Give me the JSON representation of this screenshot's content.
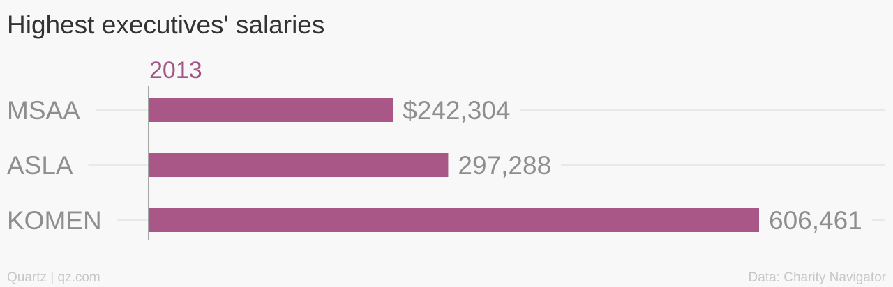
{
  "chart_data": {
    "type": "bar",
    "orientation": "horizontal",
    "title": "Highest executives' salaries",
    "series": [
      {
        "name": "2013",
        "color": "#a85786",
        "values": [
          242304,
          297288,
          606461
        ],
        "value_labels": [
          "$242,304",
          "297,288",
          "606,461"
        ]
      }
    ],
    "categories": [
      "MSAA",
      "ASLA",
      "KOMEN"
    ],
    "xlim": [
      0,
      606461
    ],
    "grid": true
  },
  "footer": {
    "credit": "Quartz | qz.com",
    "source": "Data: Charity Navigator"
  },
  "colors": {
    "bar": "#a85786",
    "series_label": "#a05785",
    "title": "#333333",
    "category_text": "#8e8e8e",
    "value_text": "#8e8e8e",
    "footer_text": "#c7c7c7",
    "gridline": "#e9e9e9",
    "background": "#f8f8f8"
  }
}
